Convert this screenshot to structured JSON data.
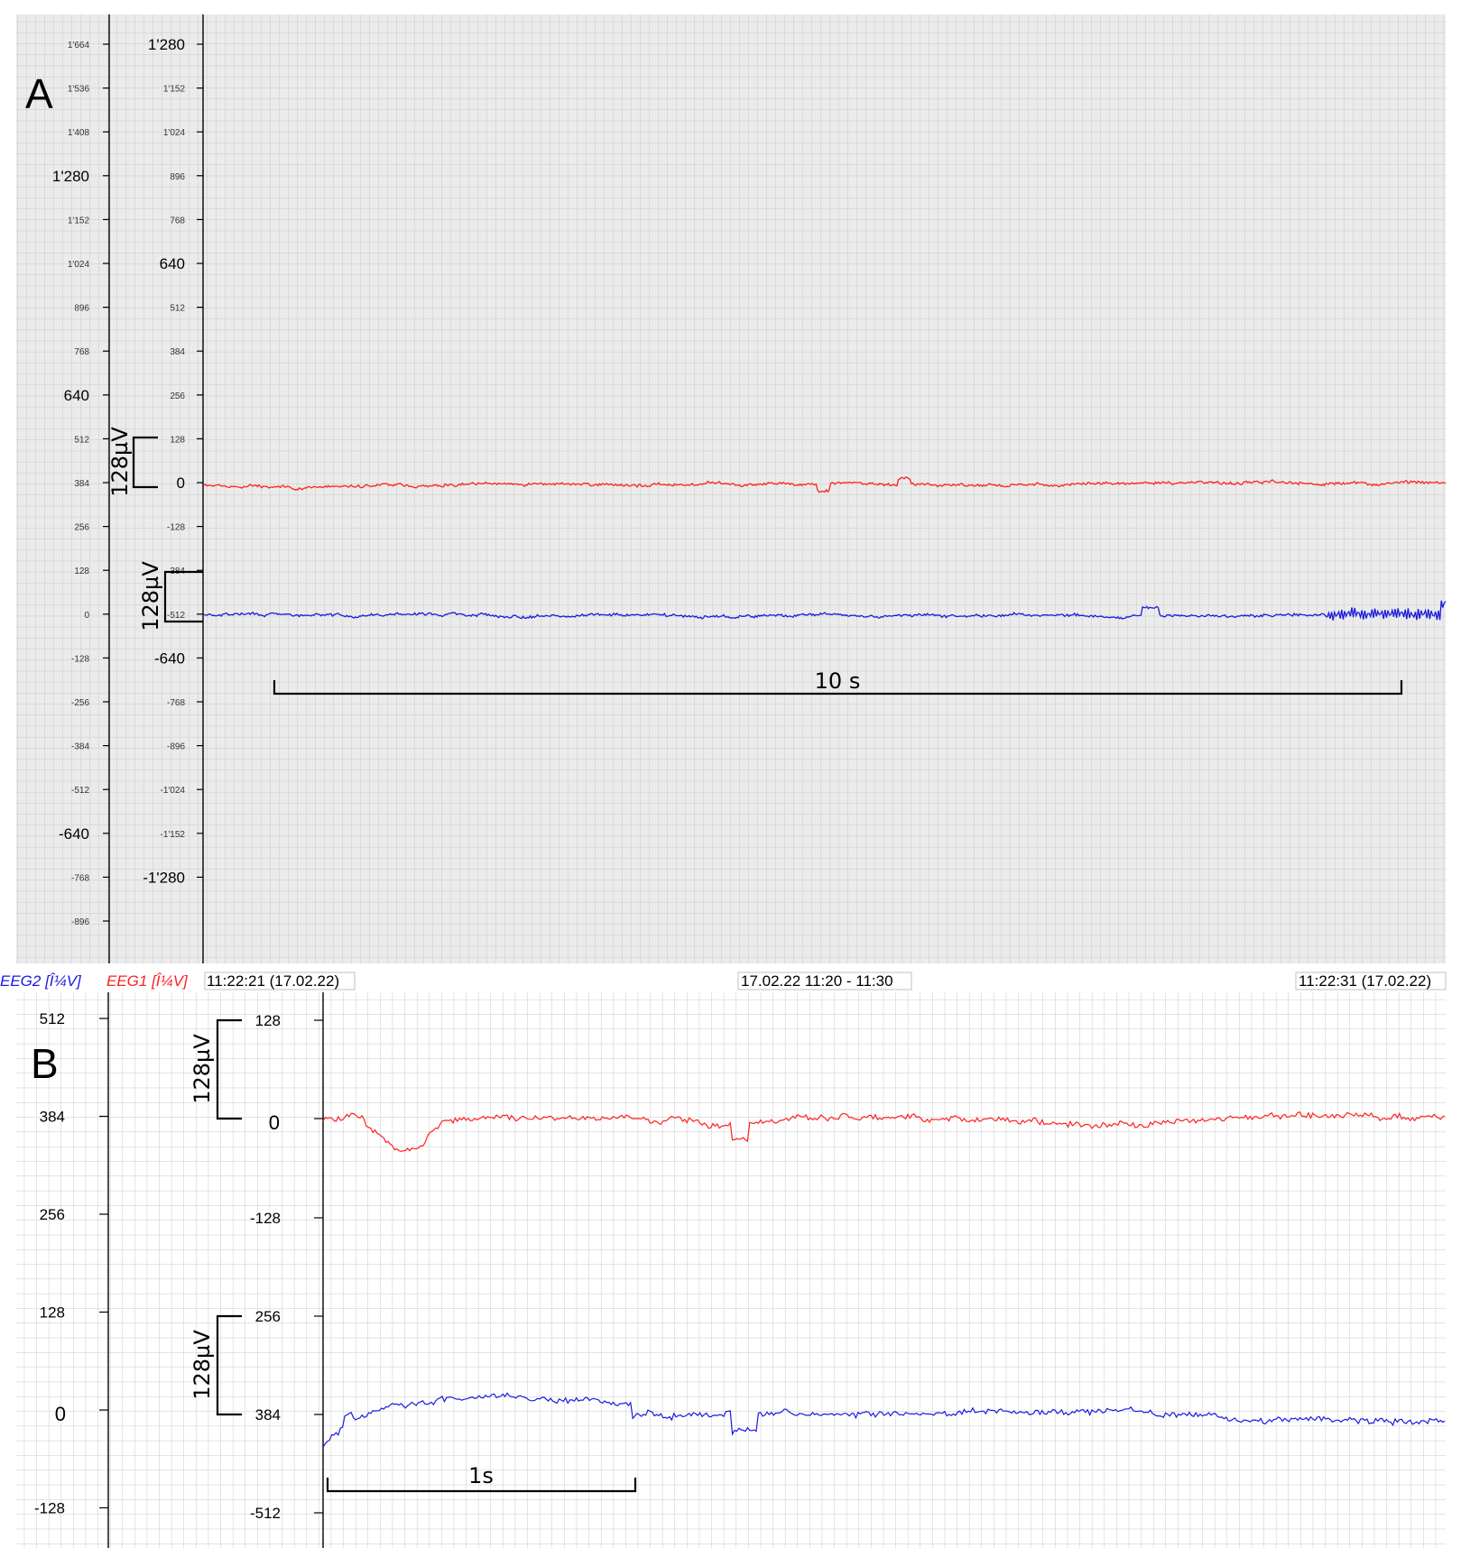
{
  "colors": {
    "eeg1": "#ff2020",
    "eeg2": "#1a1ae0",
    "grid": "#c9c9c9",
    "background": "#ebebeb"
  },
  "chart_data": [
    {
      "type": "line",
      "panel_label": "A",
      "axes": {
        "outer_major_ticks": [
          "1'280",
          "640",
          "-640"
        ],
        "outer_minor_ticks": [
          "1'664",
          "1'536",
          "1'408",
          "1'152",
          "1'024",
          "896",
          "768",
          "512",
          "384",
          "256",
          "128",
          "0",
          "-128",
          "-256",
          "-384",
          "-512",
          "-768",
          "-896"
        ],
        "inner_major_ticks": [
          "1'280",
          "640",
          "0",
          "-640",
          "-1'280"
        ],
        "inner_minor_ticks": [
          "1'152",
          "1'024",
          "896",
          "768",
          "512",
          "384",
          "256",
          "128",
          "-128",
          "384",
          "-512",
          "-768",
          "-896",
          "-1'024",
          "-1'152"
        ]
      },
      "series": [
        {
          "name": "EEG1",
          "baseline": 0,
          "unit": "µV",
          "amplitude_range": [
            -30,
            35
          ]
        },
        {
          "name": "EEG2",
          "baseline": 0,
          "unit": "µV",
          "amplitude_range": [
            -40,
            35
          ]
        }
      ],
      "scale_bar_label": "128µV",
      "time_bar_label": "10 s",
      "grid": true
    },
    {
      "type": "line",
      "panel_label": "B",
      "axes": {
        "outer_ticks": [
          "512",
          "384",
          "256",
          "128",
          "0",
          "-128"
        ],
        "inner_ticks": [
          "128",
          "0",
          "-128",
          "256",
          "384",
          "-512"
        ]
      },
      "series": [
        {
          "name": "EEG1",
          "baseline": 0,
          "unit": "µV",
          "amplitude_range": [
            -60,
            40
          ]
        },
        {
          "name": "EEG2",
          "baseline": 384,
          "unit": "µV",
          "amplitude_range": [
            -50,
            50
          ]
        }
      ],
      "scale_bar_label": "128µV",
      "time_bar_label": "1s",
      "grid": true
    }
  ],
  "status_bar": {
    "channel_eeg2": "EEG2 [Î¼V]",
    "channel_eeg1": "EEG1 [Î¼V]",
    "start_time": "11:22:21 (17.02.22)",
    "window_range": "17.02.22 11:20 - 11:30",
    "end_time": "11:22:31 (17.02.22)"
  }
}
